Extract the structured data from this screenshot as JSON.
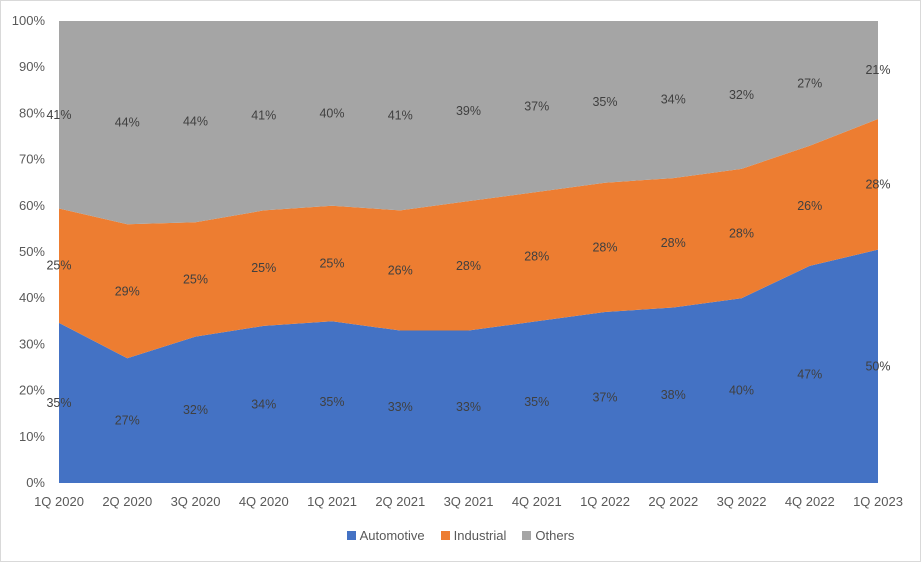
{
  "chart_data": {
    "type": "area",
    "stacked": "100%",
    "categories": [
      "1Q 2020",
      "2Q 2020",
      "3Q 2020",
      "4Q 2020",
      "1Q 2021",
      "2Q 2021",
      "3Q 2021",
      "4Q 2021",
      "1Q 2022",
      "2Q 2022",
      "3Q 2022",
      "4Q 2022",
      "1Q 2023"
    ],
    "series": [
      {
        "name": "Automotive",
        "color": "#4472c4",
        "values": [
          35,
          27,
          32,
          34,
          35,
          33,
          33,
          35,
          37,
          38,
          40,
          47,
          50
        ],
        "labels": [
          "35%",
          "27%",
          "32%",
          "34%",
          "35%",
          "33%",
          "33%",
          "35%",
          "37%",
          "38%",
          "40%",
          "47%",
          "50%"
        ]
      },
      {
        "name": "Industrial",
        "color": "#ed7d31",
        "values": [
          25,
          29,
          25,
          25,
          25,
          26,
          28,
          28,
          28,
          28,
          28,
          26,
          28
        ],
        "labels": [
          "25%",
          "29%",
          "25%",
          "25%",
          "25%",
          "26%",
          "28%",
          "28%",
          "28%",
          "28%",
          "28%",
          "26%",
          "28%"
        ]
      },
      {
        "name": "Others",
        "color": "#a5a5a5",
        "values": [
          41,
          44,
          44,
          41,
          40,
          41,
          39,
          37,
          35,
          34,
          32,
          27,
          21
        ],
        "labels": [
          "41%",
          "44%",
          "44%",
          "41%",
          "40%",
          "41%",
          "39%",
          "37%",
          "35%",
          "34%",
          "32%",
          "27%",
          "21%"
        ]
      }
    ],
    "y_ticks": [
      "0%",
      "10%",
      "20%",
      "30%",
      "40%",
      "50%",
      "60%",
      "70%",
      "80%",
      "90%",
      "100%"
    ],
    "ylim": [
      0,
      100
    ],
    "grid": false,
    "legend": "bottom",
    "title": "",
    "xlabel": "",
    "ylabel": ""
  }
}
